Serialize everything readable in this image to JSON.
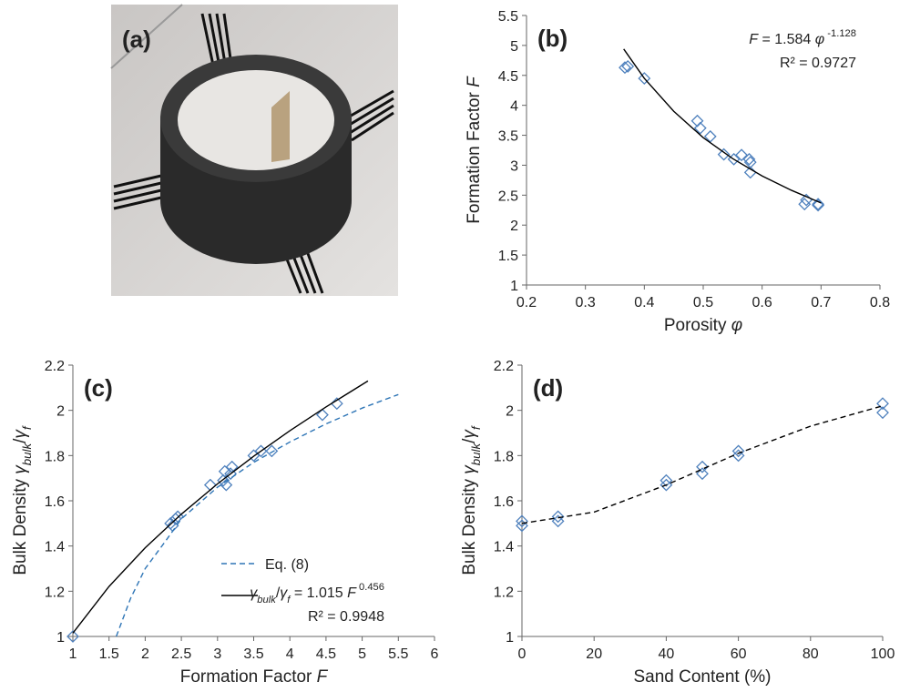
{
  "panel_a": {
    "label": "(a)"
  },
  "chart_data": [
    {
      "type": "scatter",
      "panel": "(b)",
      "xlabel": [
        "Porosity ",
        "φ"
      ],
      "ylabel": [
        "Formation Factor ",
        "F"
      ],
      "xlim": [
        0.2,
        0.8
      ],
      "xticks": [
        0.2,
        0.3,
        0.4,
        0.5,
        0.6,
        0.7,
        0.8
      ],
      "ylim": [
        1,
        5.5
      ],
      "yticks": [
        1,
        1.5,
        2,
        2.5,
        3,
        3.5,
        4,
        4.5,
        5,
        5.5
      ],
      "series": [
        {
          "style": "marker",
          "color": "#4f81bd",
          "x": [
            0.367,
            0.372,
            0.4,
            0.49,
            0.495,
            0.512,
            0.535,
            0.552,
            0.565,
            0.578,
            0.58,
            0.58,
            0.672,
            0.675,
            0.695,
            0.695
          ],
          "values": [
            4.63,
            4.65,
            4.45,
            3.74,
            3.62,
            3.48,
            3.18,
            3.1,
            3.17,
            3.1,
            3.05,
            2.88,
            2.35,
            2.42,
            2.33,
            2.35
          ]
        },
        {
          "style": "solid",
          "color": "#000000",
          "x": [
            0.365,
            0.4,
            0.45,
            0.5,
            0.55,
            0.6,
            0.65,
            0.7
          ],
          "values": [
            4.94,
            4.45,
            3.9,
            3.46,
            3.11,
            2.82,
            2.58,
            2.37
          ]
        }
      ],
      "annotations": [
        [
          "F",
          " = 1.584 ",
          "φ",
          " -1.128"
        ],
        [
          "R² = 0.9727"
        ]
      ]
    },
    {
      "type": "scatter",
      "panel": "(c)",
      "xlabel": [
        "Formation Factor ",
        "F"
      ],
      "ylabel": [
        "Bulk Density ",
        "γ",
        "bulk",
        "/",
        "γ",
        "f"
      ],
      "xlim": [
        1,
        6
      ],
      "xticks": [
        1,
        1.5,
        2,
        2.5,
        3,
        3.5,
        4,
        4.5,
        5,
        5.5,
        6
      ],
      "ylim": [
        1,
        2.2
      ],
      "yticks": [
        1,
        1.2,
        1.4,
        1.6,
        1.8,
        2,
        2.2
      ],
      "series": [
        {
          "style": "marker",
          "color": "#4f81bd",
          "x": [
            1,
            2.35,
            2.38,
            2.42,
            2.45,
            2.9,
            3.08,
            3.1,
            3.12,
            3.18,
            3.2,
            3.5,
            3.6,
            3.75,
            4.45,
            4.65
          ],
          "values": [
            1,
            1.5,
            1.49,
            1.52,
            1.53,
            1.67,
            1.69,
            1.73,
            1.67,
            1.72,
            1.75,
            1.8,
            1.82,
            1.82,
            1.98,
            2.03
          ]
        },
        {
          "style": "dashed",
          "color": "#2e75b6",
          "name": "Eq. (8)",
          "x": [
            1.6,
            1.8,
            2.0,
            2.3,
            2.5,
            3,
            3.5,
            4,
            4.5,
            5,
            5.5
          ],
          "values": [
            1.0,
            1.17,
            1.3,
            1.43,
            1.52,
            1.66,
            1.77,
            1.86,
            1.94,
            2.01,
            2.07
          ]
        },
        {
          "style": "solid",
          "color": "#000000",
          "x": [
            1,
            1.5,
            2,
            2.5,
            3,
            3.5,
            4,
            4.5,
            5.08
          ],
          "values": [
            1.015,
            1.221,
            1.392,
            1.541,
            1.675,
            1.797,
            1.91,
            2.015,
            2.13
          ]
        }
      ],
      "annotations": [
        [
          "γ",
          "bulk",
          "/",
          "γ",
          "f",
          " = 1.015 ",
          "F",
          " 0.456"
        ],
        [
          "R² = 0.9948"
        ]
      ]
    },
    {
      "type": "scatter",
      "panel": "(d)",
      "xlabel": [
        "Sand Content (%)"
      ],
      "ylabel": [
        "Bulk Density ",
        "γ",
        "bulk",
        "/",
        "γ",
        "f"
      ],
      "xlim": [
        0,
        100
      ],
      "xticks": [
        0,
        20,
        40,
        60,
        80,
        100
      ],
      "ylim": [
        1,
        2.2
      ],
      "yticks": [
        1,
        1.2,
        1.4,
        1.6,
        1.8,
        2,
        2.2
      ],
      "series": [
        {
          "style": "marker",
          "color": "#4f81bd",
          "x": [
            0,
            0,
            10,
            10,
            40,
            40,
            50,
            50,
            60,
            60,
            100,
            100
          ],
          "values": [
            1.49,
            1.51,
            1.51,
            1.53,
            1.67,
            1.69,
            1.72,
            1.75,
            1.8,
            1.82,
            1.99,
            2.03
          ]
        },
        {
          "style": "dashed",
          "color": "#000000",
          "x": [
            0,
            20,
            40,
            60,
            80,
            100
          ],
          "values": [
            1.5,
            1.55,
            1.67,
            1.81,
            1.93,
            2.02
          ]
        }
      ],
      "annotations": []
    }
  ]
}
